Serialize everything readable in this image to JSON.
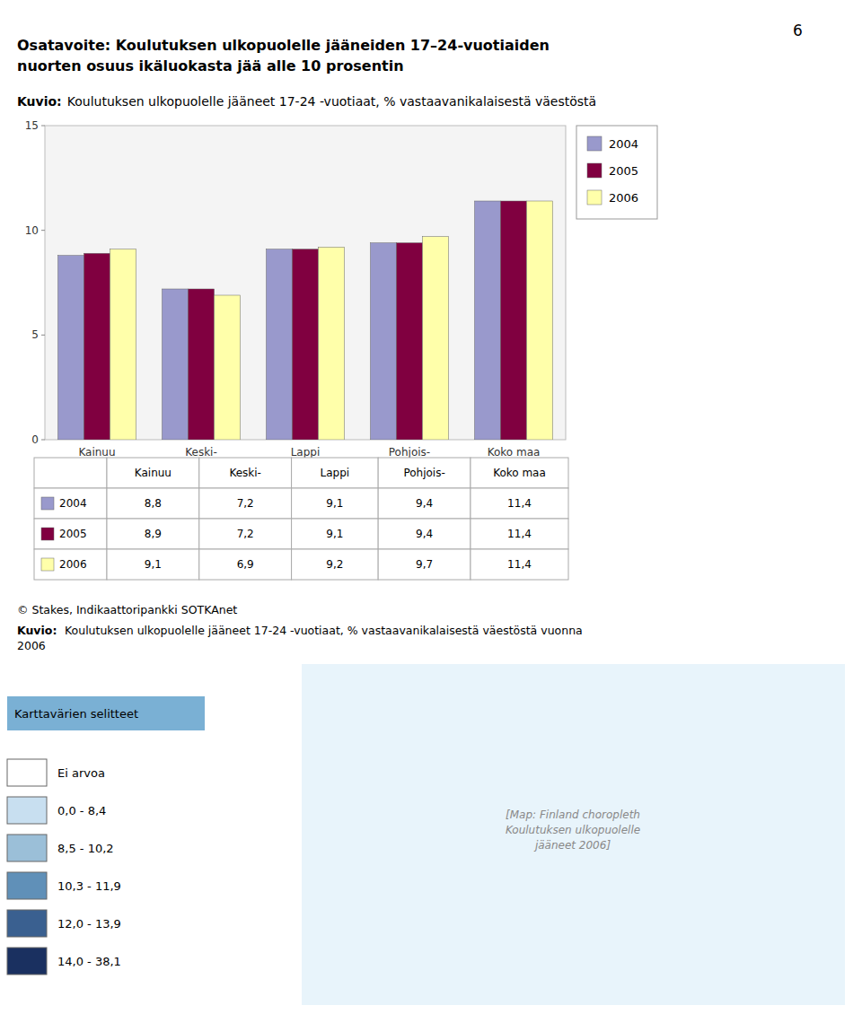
{
  "page_number": "6",
  "title": "Osatavoite: Koulutuksen ulkopuolelle jääneiden 17–24-vuotiaiden\nnuorten osuus ikäluokasta jää alle 10 prosentin",
  "chart_data": {
    "type": "bar",
    "title_label": "Kuvio:",
    "title": "Koulutuksen ulkopuolelle jääneet 17-24 -vuotiaat, % vastaavanikalaisestä väestöstä",
    "categories": [
      "Kainuu",
      "Keski-",
      "Lappi",
      "Pohjois-",
      "Koko maa"
    ],
    "series": [
      {
        "name": "2004",
        "color": "#9999cc",
        "values": [
          8.8,
          7.2,
          9.1,
          9.4,
          11.4
        ],
        "value_labels": [
          "8,8",
          "7,2",
          "9,1",
          "9,4",
          "11,4"
        ]
      },
      {
        "name": "2005",
        "color": "#800040",
        "values": [
          8.9,
          7.2,
          9.1,
          9.4,
          11.4
        ],
        "value_labels": [
          "8,9",
          "7,2",
          "9,1",
          "9,4",
          "11,4"
        ]
      },
      {
        "name": "2006",
        "color": "#ffffaa",
        "values": [
          9.1,
          6.9,
          9.2,
          9.7,
          11.4
        ],
        "value_labels": [
          "9,1",
          "6,9",
          "9,2",
          "9,7",
          "11,4"
        ]
      }
    ],
    "ylim": [
      0,
      15
    ],
    "yticks": [
      0,
      5,
      10,
      15
    ],
    "grid": false,
    "legend": "right"
  },
  "source": "© Stakes, Indikaattoripankki SOTKAnet",
  "footer_label": "Kuvio:",
  "footer_text": "Koulutuksen ulkopuolelle jääneet 17-24 -vuotiaat, % vastaavanikalaisestä väestöstä vuonna\n2006",
  "map_legend": {
    "title": "Karttavärien selitteet",
    "items": [
      {
        "label": "Ei arvoa",
        "color": "#ffffff"
      },
      {
        "label": "0,0 - 8,4",
        "color": "#c8dff0"
      },
      {
        "label": "8,5 - 10,2",
        "color": "#9bbfd8"
      },
      {
        "label": "10,3 - 11,9",
        "color": "#6090b8"
      },
      {
        "label": "12,0 - 13,9",
        "color": "#3a6090"
      },
      {
        "label": "14,0 - 38,1",
        "color": "#1a3060"
      }
    ]
  },
  "map_placeholder": "[Map: Finland choropleth\nKoulutuksen ulkopuolelle\njääneet 2006]"
}
